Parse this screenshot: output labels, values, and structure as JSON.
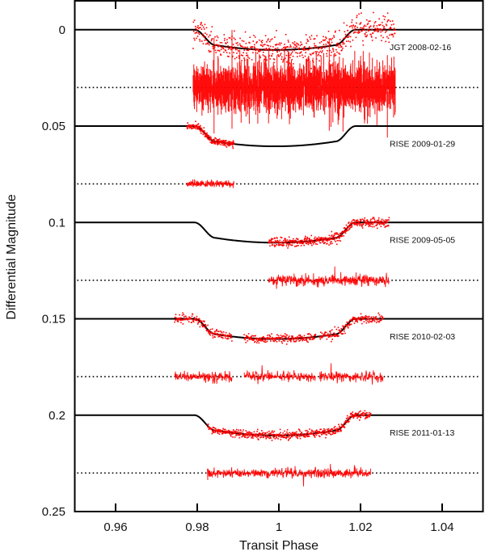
{
  "chart_data": {
    "type": "scatter",
    "title": "",
    "xlabel": "Transit Phase",
    "ylabel": "Differential Magnitude",
    "xlim": [
      0.95,
      1.05
    ],
    "ylim": [
      0.25,
      -0.015
    ],
    "y_inverted": true,
    "grid": false,
    "legend": "none",
    "x_ticks": [
      0.96,
      0.98,
      1,
      1.02,
      1.04
    ],
    "x_tick_labels": [
      "0.96",
      "0.98",
      "1",
      "1.02",
      "1.04"
    ],
    "y_ticks": [
      0,
      0.05,
      0.1,
      0.15,
      0.2,
      0.25
    ],
    "y_tick_labels": [
      "0",
      "0.05",
      "0.1",
      "0.15",
      "0.2",
      "0.25"
    ],
    "colors": {
      "data": "#ff0000",
      "model": "#000000",
      "residual_baseline": "#000000"
    },
    "transit_model": {
      "t1": 0.9793,
      "t2": 0.9845,
      "t3": 1.0138,
      "t4": 1.0188,
      "depth": 0.0105,
      "limb_darkening_extra": 0.0025
    },
    "series": [
      {
        "name": "JGT 2008-02-16",
        "label_y": 0.009,
        "model_offset": 0.0,
        "residual_offset": 0.03,
        "data_segments": [
          [
            0.979,
            1.0285
          ]
        ],
        "scatter": 0.0035,
        "residual_amplitude": 0.0055,
        "residual_style": "errorbar",
        "n_points": 620
      },
      {
        "name": "RISE 2009-01-29",
        "label_y": 0.059,
        "model_offset": 0.05,
        "residual_offset": 0.08,
        "data_segments": [
          [
            0.9775,
            0.989
          ]
        ],
        "scatter": 0.0009,
        "residual_amplitude": 0.0009,
        "residual_style": "line",
        "n_points": 220
      },
      {
        "name": "RISE 2009-05-05",
        "label_y": 0.109,
        "model_offset": 0.1,
        "residual_offset": 0.13,
        "data_segments": [
          [
            0.9975,
            1.027
          ]
        ],
        "scatter": 0.0012,
        "residual_amplitude": 0.0014,
        "residual_style": "line",
        "n_points": 460
      },
      {
        "name": "RISE 2010-02-03",
        "label_y": 0.159,
        "model_offset": 0.15,
        "residual_offset": 0.18,
        "data_segments": [
          [
            0.9745,
            0.9885
          ],
          [
            0.9915,
            1.009
          ],
          [
            1.01,
            1.0255
          ]
        ],
        "scatter": 0.0012,
        "residual_amplitude": 0.0013,
        "residual_style": "line",
        "n_points": 560
      },
      {
        "name": "RISE 2011-01-13",
        "label_y": 0.209,
        "model_offset": 0.2,
        "residual_offset": 0.23,
        "data_segments": [
          [
            0.9825,
            1.0225
          ]
        ],
        "scatter": 0.001,
        "residual_amplitude": 0.0012,
        "residual_style": "line",
        "n_points": 560
      }
    ]
  }
}
